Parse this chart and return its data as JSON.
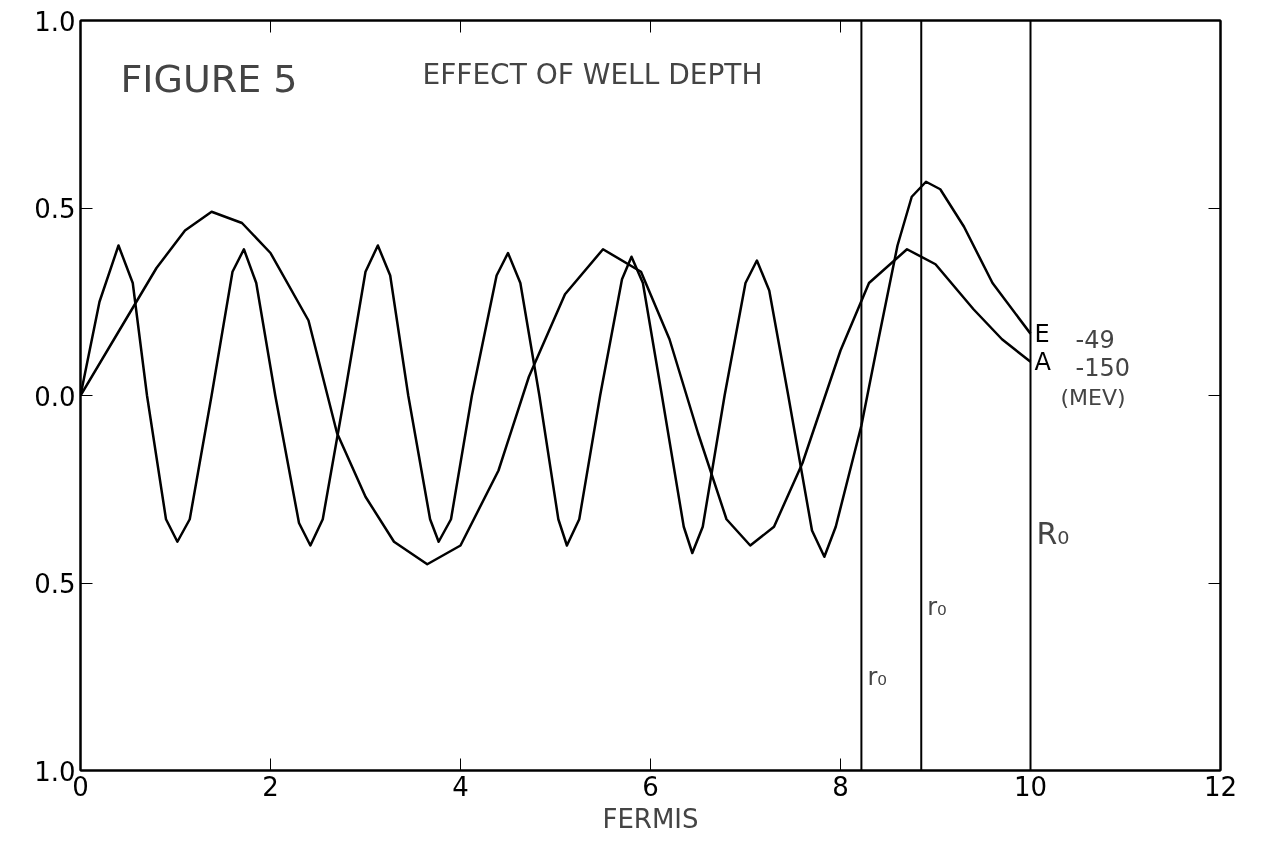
{
  "chart_data": {
    "type": "line",
    "title": "EFFECT OF WELL DEPTH",
    "xlabel": "FERMIS",
    "xlim": [
      0,
      12
    ],
    "xticks": [
      0,
      2,
      4,
      6,
      8,
      10,
      12
    ],
    "ylim": [
      -1,
      1
    ],
    "yticks": [
      {
        "value": -1,
        "label": "1.0"
      },
      {
        "value": -0.5,
        "label": "0.5"
      },
      {
        "value": 0,
        "label": "0.0"
      },
      {
        "value": 0.5,
        "label": "0.5"
      },
      {
        "value": 1,
        "label": "1.0"
      }
    ],
    "grid": false,
    "legend": false,
    "marker": "none",
    "line_style": "solid",
    "annotations": [
      "FIGURE 5",
      {
        "text": "-49",
        "x": 10,
        "y": 0.165
      },
      {
        "text": "-150",
        "x": 10,
        "y": 0.09
      },
      "(MEV)"
    ],
    "ref_lines": [
      {
        "axis": "x",
        "value": 8.22,
        "label": "r₀",
        "color": "#000000"
      },
      {
        "axis": "x",
        "value": 8.85,
        "label": "r₀",
        "color": "#000000"
      },
      {
        "axis": "x",
        "value": 10,
        "label": "R₀",
        "color": "#000000"
      }
    ],
    "series": [
      {
        "name": "E",
        "color": "#000000",
        "x": [
          0,
          0.2,
          0.4,
          0.55,
          0.7,
          0.9,
          1.02,
          1.15,
          1.38,
          1.6,
          1.72,
          1.85,
          2.05,
          2.3,
          2.42,
          2.55,
          2.78,
          3.0,
          3.13,
          3.26,
          3.45,
          3.68,
          3.77,
          3.9,
          4.12,
          4.38,
          4.5,
          4.63,
          4.83,
          5.03,
          5.12,
          5.25,
          5.47,
          5.7,
          5.8,
          5.92,
          6.12,
          6.35,
          6.44,
          6.55,
          6.78,
          7.0,
          7.12,
          7.25,
          7.45,
          7.7,
          7.83,
          7.95,
          8.22,
          8.4,
          8.6,
          8.75,
          8.9,
          9.05,
          9.3,
          9.6,
          10
        ],
        "values": [
          0,
          0.25,
          0.4,
          0.3,
          0,
          -0.33,
          -0.39,
          -0.33,
          0,
          0.33,
          0.39,
          0.3,
          0,
          -0.34,
          -0.4,
          -0.33,
          0,
          0.33,
          0.4,
          0.32,
          0,
          -0.33,
          -0.39,
          -0.33,
          0,
          0.32,
          0.38,
          0.3,
          0,
          -0.33,
          -0.4,
          -0.33,
          0,
          0.31,
          0.37,
          0.3,
          0,
          -0.35,
          -0.42,
          -0.35,
          0,
          0.3,
          0.36,
          0.28,
          0,
          -0.36,
          -0.43,
          -0.35,
          -0.08,
          0.15,
          0.4,
          0.53,
          0.57,
          0.55,
          0.45,
          0.3,
          0.165
        ]
      },
      {
        "name": "A",
        "color": "#000000",
        "x": [
          0,
          0.4,
          0.8,
          1.1,
          1.38,
          1.7,
          2.0,
          2.4,
          2.7,
          3.0,
          3.3,
          3.65,
          4.0,
          4.4,
          4.72,
          5.1,
          5.5,
          5.9,
          6.2,
          6.5,
          6.8,
          7.05,
          7.3,
          7.6,
          8.0,
          8.3,
          8.7,
          9.0,
          9.4,
          9.7,
          10
        ],
        "values": [
          0,
          0.17,
          0.34,
          0.44,
          0.49,
          0.46,
          0.38,
          0.2,
          -0.1,
          -0.27,
          -0.39,
          -0.45,
          -0.4,
          -0.2,
          0.05,
          0.27,
          0.39,
          0.33,
          0.15,
          -0.1,
          -0.33,
          -0.4,
          -0.35,
          -0.18,
          0.12,
          0.3,
          0.39,
          0.35,
          0.23,
          0.15,
          0.09
        ]
      }
    ]
  }
}
